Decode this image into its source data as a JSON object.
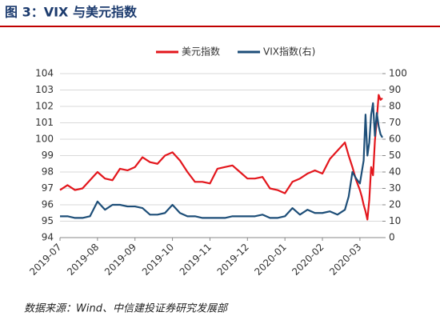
{
  "chart_data": {
    "type": "line",
    "title": "图 3：VIX 与美元指数",
    "source": "数据来源：Wind、中信建投证券研究发展部",
    "x": [
      0,
      0.2,
      0.4,
      0.6,
      0.8,
      1,
      1.2,
      1.4,
      1.6,
      1.8,
      2,
      2.2,
      2.4,
      2.6,
      2.8,
      3,
      3.2,
      3.4,
      3.6,
      3.8,
      4,
      4.2,
      4.4,
      4.6,
      4.8,
      5,
      5.2,
      5.4,
      5.6,
      5.8,
      6,
      6.2,
      6.4,
      6.6,
      6.8,
      7,
      7.2,
      7.4,
      7.6,
      7.7,
      7.8,
      7.9,
      8,
      8.05,
      8.1,
      8.15,
      8.2,
      8.25,
      8.3,
      8.35,
      8.4,
      8.45,
      8.5,
      8.55,
      8.6
    ],
    "xlim": [
      0,
      8.6
    ],
    "xticks": [
      {
        "value": 0,
        "label": "2019-07"
      },
      {
        "value": 1,
        "label": "2019-08"
      },
      {
        "value": 2,
        "label": "2019-09"
      },
      {
        "value": 3,
        "label": "2019-10"
      },
      {
        "value": 4,
        "label": "2019-11"
      },
      {
        "value": 5,
        "label": "2019-12"
      },
      {
        "value": 6,
        "label": "2020-01"
      },
      {
        "value": 7,
        "label": "2020-02"
      },
      {
        "value": 8,
        "label": "2020-03"
      }
    ],
    "ylim": [
      94,
      104
    ],
    "yticks": [
      94,
      95,
      96,
      97,
      98,
      99,
      100,
      101,
      102,
      103,
      104
    ],
    "y2lim": [
      0,
      100
    ],
    "y2ticks": [
      0,
      10,
      20,
      30,
      40,
      50,
      60,
      70,
      80,
      90,
      100
    ],
    "grid": true,
    "series": [
      {
        "name": "美元指数",
        "color": "#e3161c",
        "values": [
          96.9,
          97.2,
          96.9,
          97.0,
          97.5,
          98.0,
          97.6,
          97.5,
          98.2,
          98.1,
          98.3,
          98.9,
          98.6,
          98.5,
          99.0,
          99.2,
          98.7,
          98.0,
          97.4,
          97.4,
          97.3,
          98.2,
          98.3,
          98.4,
          98.0,
          97.6,
          97.6,
          97.7,
          97.0,
          96.9,
          96.7,
          97.4,
          97.6,
          97.9,
          98.1,
          97.9,
          98.8,
          99.3,
          99.8,
          99.0,
          98.3,
          97.5,
          96.9,
          96.5,
          96.0,
          95.6,
          95.1,
          96.3,
          98.3,
          97.8,
          99.9,
          101.2,
          102.7,
          102.4,
          102.5
        ]
      },
      {
        "name": "VIX指数(右)",
        "color": "#1d4e78",
        "axis": "y2",
        "values": [
          13,
          13,
          12,
          12,
          13,
          22,
          17,
          20,
          20,
          19,
          19,
          18,
          14,
          14,
          15,
          20,
          15,
          13,
          13,
          12,
          12,
          12,
          12,
          13,
          13,
          13,
          13,
          14,
          12,
          12,
          13,
          18,
          14,
          17,
          15,
          15,
          16,
          14,
          17,
          25,
          40,
          36,
          33,
          40,
          47,
          75,
          50,
          58,
          75,
          82,
          62,
          76,
          68,
          63,
          61
        ]
      }
    ]
  }
}
